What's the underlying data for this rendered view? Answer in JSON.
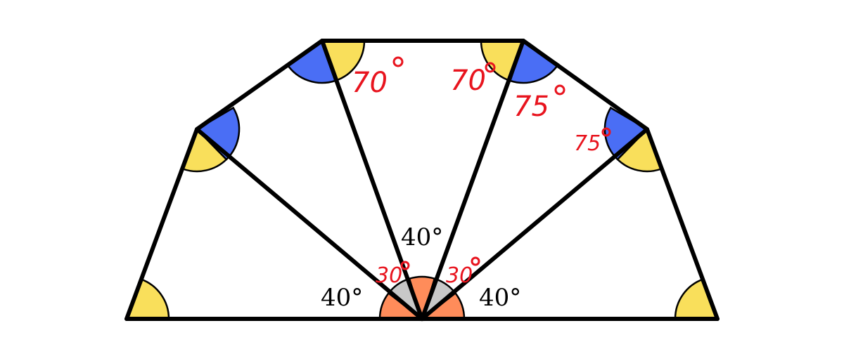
{
  "diagram": {
    "printed_labels": {
      "left_base_angle": "40°",
      "center_top_angle": "40°",
      "right_base_angle": "40°"
    },
    "handwritten_labels": {
      "left_top_angle": "70",
      "right_top_angle": "70",
      "right_upper_angle": "75",
      "right_side_angle": "75",
      "center_left_angle": "30",
      "center_right_angle": "30"
    },
    "colors": {
      "yellow_angle": "#f9df5b",
      "blue_angle": "#4a6ef5",
      "orange_angle": "#ff8c5a",
      "gray_angle": "#c8c8c8",
      "annotation_red": "#e8141e",
      "outline": "#000000"
    }
  }
}
